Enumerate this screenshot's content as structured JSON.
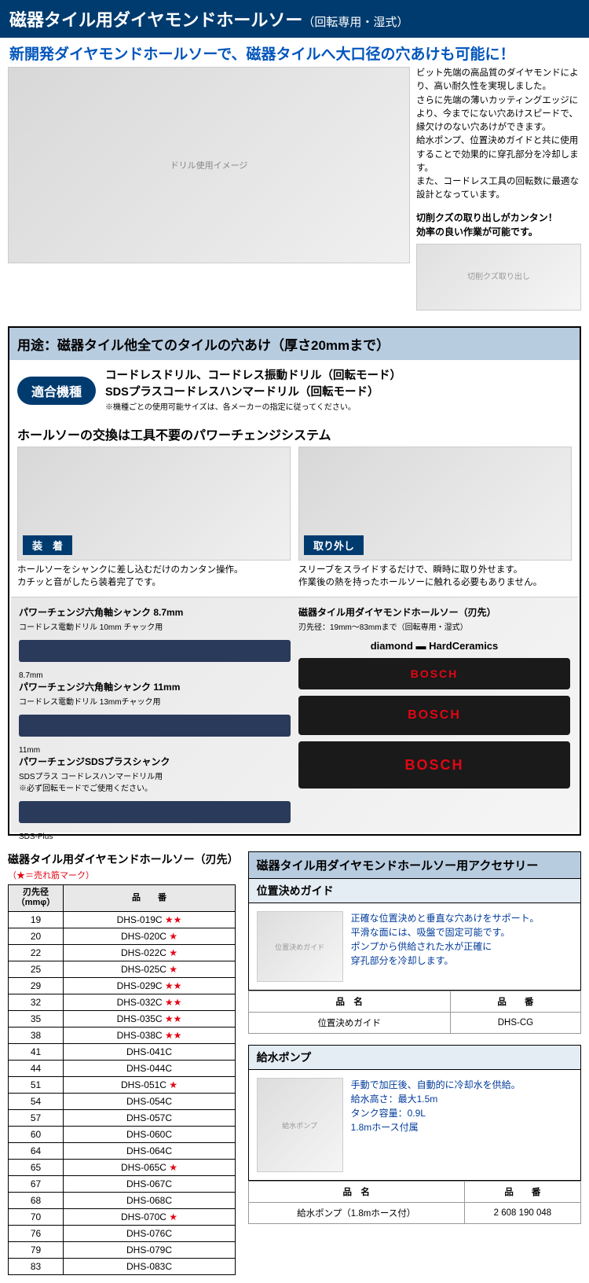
{
  "header": {
    "title": "磁器タイル用ダイヤモンドホールソー",
    "subtitle": "（回転専用・湿式）"
  },
  "headline": "新開発ダイヤモンドホールソーで、磁器タイルへ大口径の穴あけも可能に！",
  "hero": {
    "description": "ビット先端の高品質のダイヤモンドにより、高い耐久性を実現しました。\nさらに先端の薄いカッティングエッジにより、今までにない穴あけスピードで、縁欠けのない穴あけができます。\n給水ポンプ、位置決めガイドと共に使用することで効果的に穿孔部分を冷却します。\nまた、コードレス工具の回転数に最適な設計となっています。",
    "note_title": "切削クズの取り出しがカンタン！\n効率の良い作業が可能です。",
    "main_img_alt": "ドリル使用イメージ",
    "sub_img_alt": "切削クズ取り出し"
  },
  "usage": {
    "header": "用途：磁器タイル他全てのタイルの穴あけ（厚さ20mmまで）",
    "badge": "適合機種",
    "machines": "コードレスドリル、コードレス振動ドリル（回転モード）\nSDSプラスコードレスハンマードリル（回転モード）",
    "machine_note": "※機種ごとの使用可能サイズは、各メーカーの指定に従ってください。"
  },
  "system": {
    "title": "ホールソーの交換は工具不要のパワーチェンジシステム",
    "attach_tag": "装　着",
    "detach_tag": "取り外し",
    "attach_caption": "ホールソーをシャンクに差し込むだけのカンタン操作。\nカチッと音がしたら装着完了です。",
    "detach_caption": "スリーブをスライドするだけで、瞬時に取り外せます。\n作業後の熱を持ったホールソーに触れる必要もありません。"
  },
  "diagram": {
    "shank1_title": "パワーチェンジ六角軸シャンク 8.7mm",
    "shank1_sub": "コードレス電動ドリル 10mm チャック用",
    "shank1_dim": "8.7mm",
    "shank2_title": "パワーチェンジ六角軸シャンク 11mm",
    "shank2_sub": "コードレス電動ドリル 13mmチャック用",
    "shank2_dim": "11mm",
    "shank3_title": "パワーチェンジSDSプラスシャンク",
    "shank3_sub": "SDSプラス コードレスハンマードリル用\n※必ず回転モードでご使用ください。",
    "sds_label": "SDS-Plus",
    "right_title": "磁器タイル用ダイヤモンドホールソー（刃先）",
    "right_sub": "刃先径：19mm〜83mmまで（回転専用・湿式）",
    "brand_label": "diamond ▬ HardCeramics",
    "bosch": "BOSCH"
  },
  "table": {
    "title": "磁器タイル用ダイヤモンドホールソー（刃先）",
    "star_note": "（★＝売れ筋マーク）",
    "col_diameter": "刃先径\n（mmφ）",
    "col_partno": "品　　番",
    "rows": [
      {
        "d": "19",
        "p": "DHS-019C",
        "s": "★★"
      },
      {
        "d": "20",
        "p": "DHS-020C",
        "s": "★"
      },
      {
        "d": "22",
        "p": "DHS-022C",
        "s": "★"
      },
      {
        "d": "25",
        "p": "DHS-025C",
        "s": "★"
      },
      {
        "d": "29",
        "p": "DHS-029C",
        "s": "★★"
      },
      {
        "d": "32",
        "p": "DHS-032C",
        "s": "★★"
      },
      {
        "d": "35",
        "p": "DHS-035C",
        "s": "★★"
      },
      {
        "d": "38",
        "p": "DHS-038C",
        "s": "★★"
      },
      {
        "d": "41",
        "p": "DHS-041C",
        "s": ""
      },
      {
        "d": "44",
        "p": "DHS-044C",
        "s": ""
      },
      {
        "d": "51",
        "p": "DHS-051C",
        "s": "★"
      },
      {
        "d": "54",
        "p": "DHS-054C",
        "s": ""
      },
      {
        "d": "57",
        "p": "DHS-057C",
        "s": ""
      },
      {
        "d": "60",
        "p": "DHS-060C",
        "s": ""
      },
      {
        "d": "64",
        "p": "DHS-064C",
        "s": ""
      },
      {
        "d": "65",
        "p": "DHS-065C",
        "s": "★"
      },
      {
        "d": "67",
        "p": "DHS-067C",
        "s": ""
      },
      {
        "d": "68",
        "p": "DHS-068C",
        "s": ""
      },
      {
        "d": "70",
        "p": "DHS-070C",
        "s": "★"
      },
      {
        "d": "76",
        "p": "DHS-076C",
        "s": ""
      },
      {
        "d": "79",
        "p": "DHS-079C",
        "s": ""
      },
      {
        "d": "83",
        "p": "DHS-083C",
        "s": ""
      }
    ]
  },
  "accessories": {
    "header": "磁器タイル用ダイヤモンドホールソー用アクセサリー",
    "guide": {
      "title": "位置決めガイド",
      "desc": "正確な位置決めと垂直な穴あけをサポート。\n平滑な面には、吸盤で固定可能です。\nポンプから供給された水が正確に\n穿孔部分を冷却します。",
      "name_label": "品　名",
      "partno_label": "品　　番",
      "name": "位置決めガイド",
      "partno": "DHS-CG",
      "img_alt": "位置決めガイド"
    },
    "pump": {
      "title": "給水ポンプ",
      "desc": "手動で加圧後、自動的に冷却水を供給。\n給水高さ：最大1.5m\nタンク容量：0.9L\n1.8mホース付属",
      "name_label": "品　名",
      "partno_label": "品　　番",
      "name": "給水ポンプ（1.8mホース付）",
      "partno": "2 608 190 048",
      "img_alt": "給水ポンプ"
    }
  },
  "colors": {
    "brand_blue": "#003b6f",
    "light_blue": "#b8cce0",
    "pale_blue": "#e4ecf4",
    "text_blue": "#003b9b",
    "headline_blue": "#0055bb",
    "star_red": "#e30613",
    "bosch_red": "#e30613"
  }
}
